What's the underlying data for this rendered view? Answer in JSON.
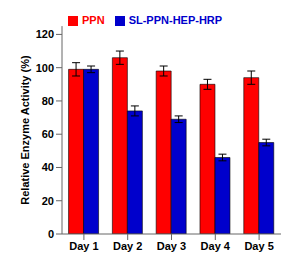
{
  "chart_data": {
    "type": "bar",
    "categories": [
      "Day 1",
      "Day 2",
      "Day 3",
      "Day 4",
      "Day 5"
    ],
    "series": [
      {
        "name": "PPN",
        "color": "#FF0000",
        "values": [
          99,
          106,
          98,
          90,
          94
        ],
        "errors": [
          4,
          4,
          3,
          3,
          4
        ]
      },
      {
        "name": "SL-PPN-HEP-HRP",
        "color": "#0000CC",
        "values": [
          99,
          74,
          69,
          46,
          55
        ],
        "errors": [
          2,
          3,
          2,
          2,
          2
        ]
      }
    ],
    "ylabel": "Relative Enzyme Activity (%)",
    "ylim": [
      0,
      125
    ],
    "yticks": [
      0,
      20,
      40,
      60,
      80,
      100,
      120
    ],
    "legend": "upper left",
    "grid": false
  }
}
